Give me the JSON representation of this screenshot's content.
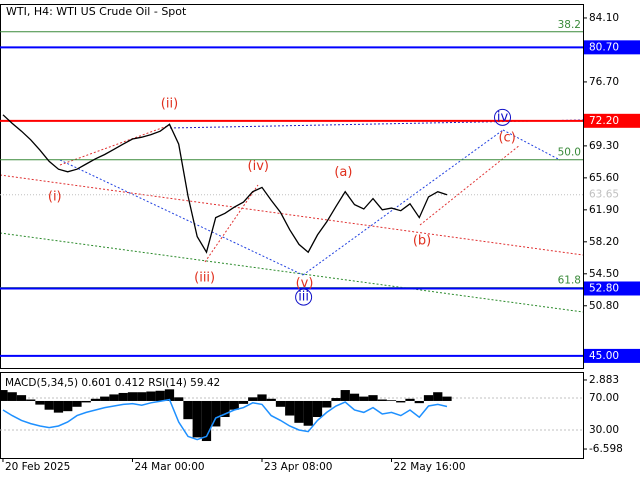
{
  "chart_data": {
    "type": "line",
    "title": "WTI, H4:  WTI US Crude Oil - Spot",
    "categories": [
      "20 Feb 2025",
      null,
      null,
      null,
      null,
      null,
      null,
      null,
      null,
      null,
      null,
      null,
      null,
      null,
      "24 Mar 00:00",
      null,
      null,
      null,
      null,
      null,
      null,
      null,
      null,
      null,
      null,
      null,
      null,
      null,
      "23 Apr 08:00",
      null,
      null,
      null,
      null,
      null,
      null,
      null,
      null,
      null,
      null,
      null,
      null,
      null,
      "22 May 16:00",
      null,
      null,
      null,
      null,
      null,
      null
    ],
    "series": [
      {
        "color": "#000000",
        "values": [
          72.9,
          71.9,
          71.0,
          70.0,
          68.8,
          67.5,
          66.6,
          66.3,
          66.6,
          67.2,
          67.8,
          68.3,
          68.9,
          69.5,
          70.1,
          70.3,
          70.6,
          71.0,
          71.8,
          69.5,
          63.5,
          58.8,
          57.0,
          61.0,
          61.5,
          62.2,
          62.8,
          64.0,
          64.5,
          63.0,
          61.6,
          59.6,
          57.9,
          57.0,
          59.0,
          60.5,
          62.3,
          64.0,
          62.5,
          62.0,
          63.2,
          61.9,
          62.1,
          61.8,
          62.6,
          61.0,
          63.4,
          64.0,
          63.65
        ]
      }
    ],
    "xlim": [
      -0.32,
      62.7
    ],
    "ylim": [
      43.6,
      85.6
    ],
    "yticks": [
      {
        "value": 84.1,
        "label": "84.10"
      },
      {
        "value": 76.7,
        "label": "76.70"
      },
      {
        "value": 69.3,
        "label": "69.30"
      },
      {
        "value": 65.6,
        "label": "65.60"
      },
      {
        "value": 61.9,
        "label": "61.90"
      },
      {
        "value": 58.2,
        "label": "58.20"
      },
      {
        "value": 54.5,
        "label": "54.50"
      },
      {
        "value": 50.8,
        "label": "50.80"
      }
    ],
    "levels": [
      {
        "value": 80.7,
        "label": "80.70",
        "color": "#0000ff"
      },
      {
        "value": 72.2,
        "label": "72.20",
        "color": "#ff0000"
      },
      {
        "value": 52.8,
        "label": "52.80",
        "color": "#0000ff"
      },
      {
        "value": 45.0,
        "label": "45.00",
        "color": "#0000ff"
      }
    ],
    "last_price": {
      "value": 63.65,
      "label": "63.65",
      "color": "#c0c0c0"
    },
    "fibo_color": "#3a8a3a",
    "fibo": [
      {
        "value": 82.5,
        "label": "38.2"
      },
      {
        "value": 67.7,
        "label": "50.0"
      },
      {
        "value": 52.9,
        "label": "61.8"
      }
    ],
    "wave_labels": [
      {
        "text": "(i)",
        "t": 5.6,
        "value": 63.4,
        "color": "#e0301e"
      },
      {
        "text": "(ii)",
        "t": 18,
        "value": 74.15,
        "color": "#e0301e"
      },
      {
        "text": "(iii)",
        "t": 21.8,
        "value": 54.0,
        "color": "#e0301e"
      },
      {
        "text": "(iv)",
        "t": 27.6,
        "value": 66.9,
        "color": "#e0301e"
      },
      {
        "text": "(v)",
        "t": 32.6,
        "value": 53.4,
        "color": "#e0301e"
      },
      {
        "text": "(a)",
        "t": 36.8,
        "value": 66.2,
        "color": "#e0301e"
      },
      {
        "text": "(b)",
        "t": 45.3,
        "value": 58.3,
        "color": "#e0301e"
      },
      {
        "text": "(c)",
        "t": 54.5,
        "value": 70.2,
        "color": "#e0301e"
      },
      {
        "text": "iii",
        "t": 32.5,
        "value": 51.8,
        "color": "#1010c8",
        "circle": true
      },
      {
        "text": "iv",
        "t": 54,
        "value": 72.6,
        "color": "#1010c8",
        "circle": true
      }
    ],
    "indicator": {
      "label": "MACD(5,34,5) 0.601 0.412 RSI(14) 59.42",
      "macd_color": "#000000",
      "macd": [
        1.5,
        1.2,
        0.8,
        0.2,
        -0.5,
        -1.2,
        -1.6,
        -1.4,
        -0.8,
        -0.2,
        0.3,
        0.6,
        0.9,
        1.1,
        1.2,
        1.2,
        1.3,
        1.4,
        1.6,
        0.5,
        -2.5,
        -5.0,
        -5.5,
        -3.5,
        -2.2,
        -1.2,
        -0.4,
        0.5,
        0.9,
        0.3,
        -0.8,
        -2.0,
        -3.0,
        -3.4,
        -2.2,
        -0.9,
        0.4,
        1.5,
        1.0,
        0.6,
        0.8,
        0.2,
        0.1,
        -0.2,
        0.3,
        -0.3,
        0.8,
        1.2,
        0.6
      ],
      "macd_ylim": [
        -7.83,
        3.84
      ],
      "macd_ticks": [
        {
          "value": 2.883,
          "label": "2.883"
        },
        {
          "value": -6.598,
          "label": "-6.598"
        }
      ],
      "rsi_color": "#1e90ff",
      "rsi": [
        55,
        48,
        42,
        38,
        35,
        33,
        35,
        40,
        48,
        52,
        55,
        58,
        60,
        62,
        63,
        61,
        64,
        66,
        68,
        40,
        22,
        18,
        22,
        45,
        50,
        55,
        58,
        64,
        62,
        48,
        42,
        35,
        30,
        28,
        42,
        52,
        60,
        65,
        55,
        52,
        58,
        50,
        52,
        48,
        55,
        46,
        60,
        62,
        59.42
      ],
      "rsi_ylim": [
        -5,
        101.25
      ],
      "rsi_ticks": [
        {
          "value": 70,
          "label": "70.00"
        },
        {
          "value": 30,
          "label": "30.00"
        }
      ]
    }
  }
}
